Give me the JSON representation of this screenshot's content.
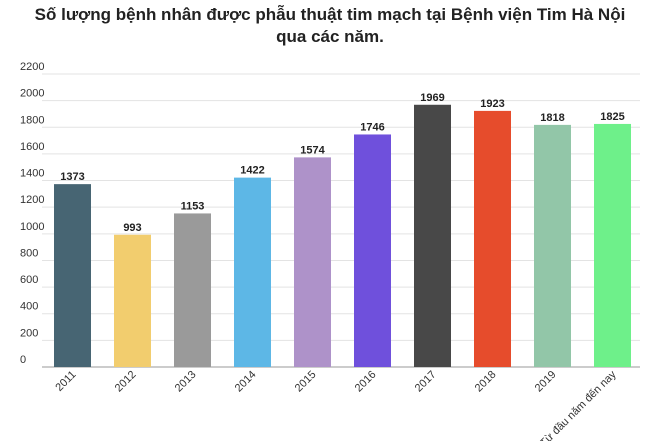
{
  "chart_data": {
    "type": "bar",
    "title": "Số lượng bệnh nhân được phẫu thuật tim mạch tại Bệnh viện Tim Hà Nội qua các năm.",
    "categories": [
      "2011",
      "2012",
      "2013",
      "2014",
      "2015",
      "2016",
      "2017",
      "2018",
      "2019",
      "Từ đầu năm đến nay"
    ],
    "values": [
      1373,
      993,
      1153,
      1422,
      1574,
      1746,
      1969,
      1923,
      1818,
      1825
    ],
    "colors": [
      "#476573",
      "#f2cd6e",
      "#9a9a9a",
      "#5db7e6",
      "#ae92c9",
      "#6f50dc",
      "#484848",
      "#e64c2c",
      "#92c6a8",
      "#6ef08a"
    ],
    "xlabel": "",
    "ylabel": "",
    "ylim": [
      0,
      2200
    ],
    "yticks": [
      0,
      200,
      400,
      600,
      800,
      1000,
      1200,
      1400,
      1600,
      1800,
      2000,
      2200
    ],
    "grid": true,
    "legend": "none"
  }
}
